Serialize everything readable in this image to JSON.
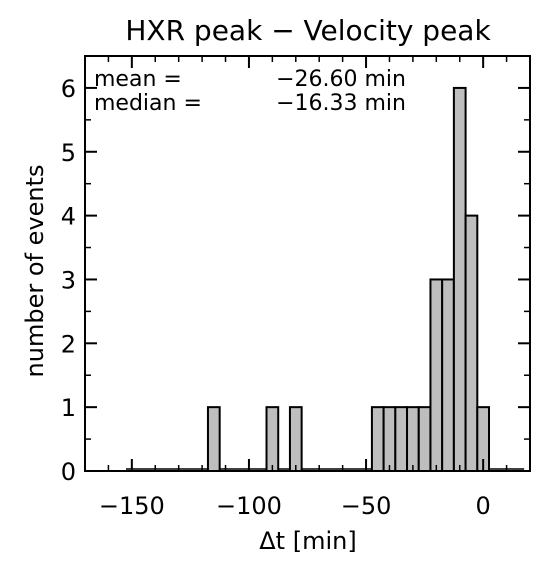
{
  "chart_data": {
    "type": "bar",
    "title": "HXR peak − Velocity peak",
    "xlabel": "Δt [min]",
    "ylabel": "number of events",
    "xlim": [
      -170,
      20
    ],
    "ylim": [
      0,
      6.5
    ],
    "bin_width": 5,
    "xticks": [
      -150,
      -100,
      -50,
      0
    ],
    "xtick_labels": [
      "−150",
      "−100",
      "−50",
      "0"
    ],
    "yticks": [
      0,
      1,
      2,
      3,
      4,
      5,
      6
    ],
    "ytick_labels": [
      "0",
      "1",
      "2",
      "3",
      "4",
      "5",
      "6"
    ],
    "bins": [
      {
        "x": -115,
        "count": 1
      },
      {
        "x": -90,
        "count": 1
      },
      {
        "x": -80,
        "count": 1
      },
      {
        "x": -45,
        "count": 1
      },
      {
        "x": -40,
        "count": 1
      },
      {
        "x": -35,
        "count": 1
      },
      {
        "x": -30,
        "count": 1
      },
      {
        "x": -25,
        "count": 1
      },
      {
        "x": -20,
        "count": 3
      },
      {
        "x": -15,
        "count": 3
      },
      {
        "x": -10,
        "count": 6
      },
      {
        "x": -5,
        "count": 4
      },
      {
        "x": 0,
        "count": 1
      }
    ],
    "annotations": [
      {
        "label": "mean =",
        "value": "−26.60 min"
      },
      {
        "label": "median =",
        "value": "−16.33 min"
      }
    ],
    "bar_color": "#bebebe",
    "grid": false
  }
}
